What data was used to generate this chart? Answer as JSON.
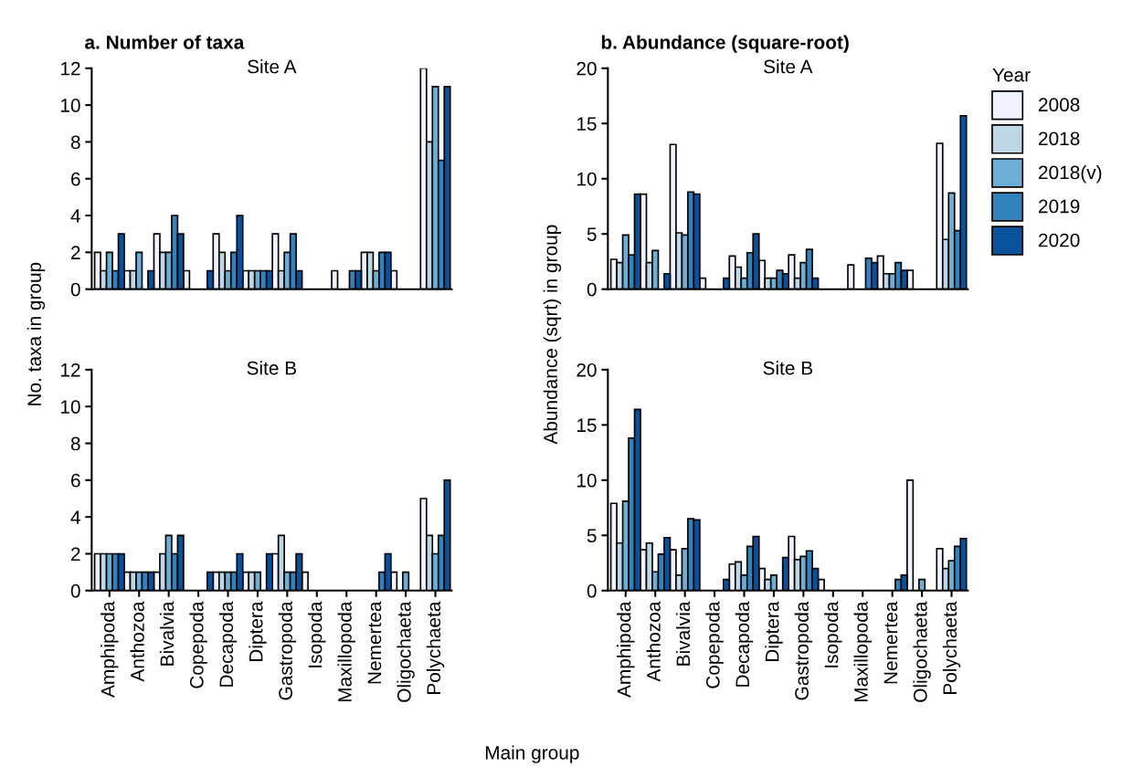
{
  "chart_data": [
    {
      "type": "bar",
      "title": "a. Number of taxa",
      "subtitle": "Site A",
      "categories": [
        null,
        null,
        null,
        null,
        null,
        null,
        null,
        null,
        null,
        null,
        null,
        null
      ],
      "ylim": [
        0,
        12
      ],
      "yticks": [
        0,
        2,
        4,
        6,
        8,
        10,
        12
      ],
      "tick_labels": "y",
      "legend": false,
      "series": [
        {
          "color": "#eff3ff",
          "values": [
            2,
            1,
            3,
            1,
            3,
            1,
            3,
            null,
            1,
            2,
            1,
            12
          ]
        },
        {
          "color": "#bdd7e7",
          "values": [
            1,
            1,
            2,
            null,
            2,
            1,
            1,
            null,
            null,
            2,
            null,
            8
          ]
        },
        {
          "color": "#6baed6",
          "values": [
            2,
            2,
            2,
            null,
            1,
            1,
            2,
            null,
            null,
            1,
            null,
            11
          ]
        },
        {
          "color": "#3182bd",
          "values": [
            1,
            null,
            4,
            null,
            2,
            1,
            3,
            null,
            1,
            2,
            null,
            7
          ]
        },
        {
          "color": "#08519c",
          "values": [
            3,
            1,
            3,
            1,
            4,
            1,
            1,
            null,
            1,
            2,
            null,
            11
          ]
        }
      ]
    },
    {
      "type": "bar",
      "title": "b. Abundance (square-root)",
      "subtitle": "Site A",
      "categories": [
        null,
        null,
        null,
        null,
        null,
        null,
        null,
        null,
        null,
        null,
        null,
        null
      ],
      "ylim": [
        0,
        20
      ],
      "yticks": [
        0,
        5,
        10,
        15,
        20
      ],
      "tick_labels": "y",
      "legend": "right",
      "legend_title": "Year",
      "series": [
        {
          "name": "2008",
          "color": "#eff3ff",
          "values": [
            2.7,
            8.6,
            13.1,
            1.0,
            3.0,
            2.6,
            3.1,
            null,
            2.2,
            3.0,
            1.7,
            13.2
          ]
        },
        {
          "name": "2018",
          "color": "#bdd7e7",
          "values": [
            2.4,
            2.4,
            5.1,
            null,
            2.0,
            1.0,
            1.0,
            null,
            null,
            1.4,
            null,
            4.5
          ]
        },
        {
          "name": "2018(v)",
          "color": "#6baed6",
          "values": [
            4.9,
            3.5,
            4.9,
            null,
            1.0,
            1.0,
            2.4,
            null,
            null,
            1.4,
            null,
            8.7
          ]
        },
        {
          "name": "2019",
          "color": "#3182bd",
          "values": [
            3.1,
            null,
            8.8,
            null,
            3.3,
            1.7,
            3.6,
            null,
            2.8,
            2.4,
            null,
            5.3
          ]
        },
        {
          "name": "2020",
          "color": "#08519c",
          "values": [
            8.6,
            1.4,
            8.6,
            1.0,
            5.0,
            1.4,
            1.0,
            null,
            2.4,
            1.7,
            null,
            15.7
          ]
        }
      ]
    },
    {
      "type": "bar",
      "title": "Site B",
      "ylabel": "No. taxa in group",
      "categories": [
        "Amphipoda",
        "Anthozoa",
        "Bivalvia",
        "Copepoda",
        "Decapoda",
        "Diptera",
        "Gastropoda",
        "Isopoda",
        "Maxillopoda",
        "Nemertea",
        "Oligochaeta",
        "Polychaeta"
      ],
      "ylim": [
        0,
        12
      ],
      "yticks": [
        0,
        2,
        4,
        6,
        8,
        10,
        12
      ],
      "legend": false,
      "series": [
        {
          "color": "#eff3ff",
          "values": [
            2,
            1,
            1,
            null,
            1,
            1,
            2,
            1,
            null,
            null,
            1,
            5
          ]
        },
        {
          "color": "#bdd7e7",
          "values": [
            2,
            1,
            2,
            null,
            1,
            1,
            3,
            null,
            null,
            null,
            null,
            3
          ]
        },
        {
          "color": "#6baed6",
          "values": [
            2,
            1,
            3,
            null,
            1,
            1,
            1,
            null,
            null,
            null,
            1,
            2
          ]
        },
        {
          "color": "#3182bd",
          "values": [
            2,
            1,
            2,
            null,
            1,
            null,
            1,
            null,
            null,
            1,
            null,
            3
          ]
        },
        {
          "color": "#08519c",
          "values": [
            2,
            1,
            3,
            1,
            2,
            2,
            2,
            null,
            null,
            2,
            null,
            6
          ]
        }
      ]
    },
    {
      "type": "bar",
      "title": "Site B",
      "ylabel": "Abundance (sqrt) in group",
      "xlabel": "Main group",
      "categories": [
        "Amphipoda",
        "Anthozoa",
        "Bivalvia",
        "Copepoda",
        "Decapoda",
        "Diptera",
        "Gastropoda",
        "Isopoda",
        "Maxillopoda",
        "Nemertea",
        "Oligochaeta",
        "Polychaeta"
      ],
      "ylim": [
        0,
        20
      ],
      "yticks": [
        0,
        5,
        10,
        15,
        20
      ],
      "legend": false,
      "series": [
        {
          "color": "#eff3ff",
          "values": [
            7.9,
            3.7,
            3.7,
            null,
            2.4,
            2.0,
            4.9,
            1.0,
            null,
            null,
            10.0,
            3.8
          ]
        },
        {
          "color": "#bdd7e7",
          "values": [
            4.3,
            4.3,
            1.4,
            null,
            2.6,
            1.0,
            2.8,
            null,
            null,
            null,
            null,
            2.0
          ]
        },
        {
          "color": "#6baed6",
          "values": [
            8.1,
            1.7,
            3.8,
            null,
            1.4,
            1.4,
            3.1,
            null,
            null,
            null,
            1.0,
            2.7
          ]
        },
        {
          "color": "#3182bd",
          "values": [
            13.8,
            3.3,
            6.5,
            null,
            4.0,
            null,
            3.6,
            null,
            null,
            1.0,
            null,
            4.0
          ]
        },
        {
          "color": "#08519c",
          "values": [
            16.4,
            4.8,
            6.4,
            1.0,
            4.9,
            3.0,
            2.0,
            null,
            null,
            1.4,
            null,
            4.7
          ]
        }
      ]
    }
  ]
}
